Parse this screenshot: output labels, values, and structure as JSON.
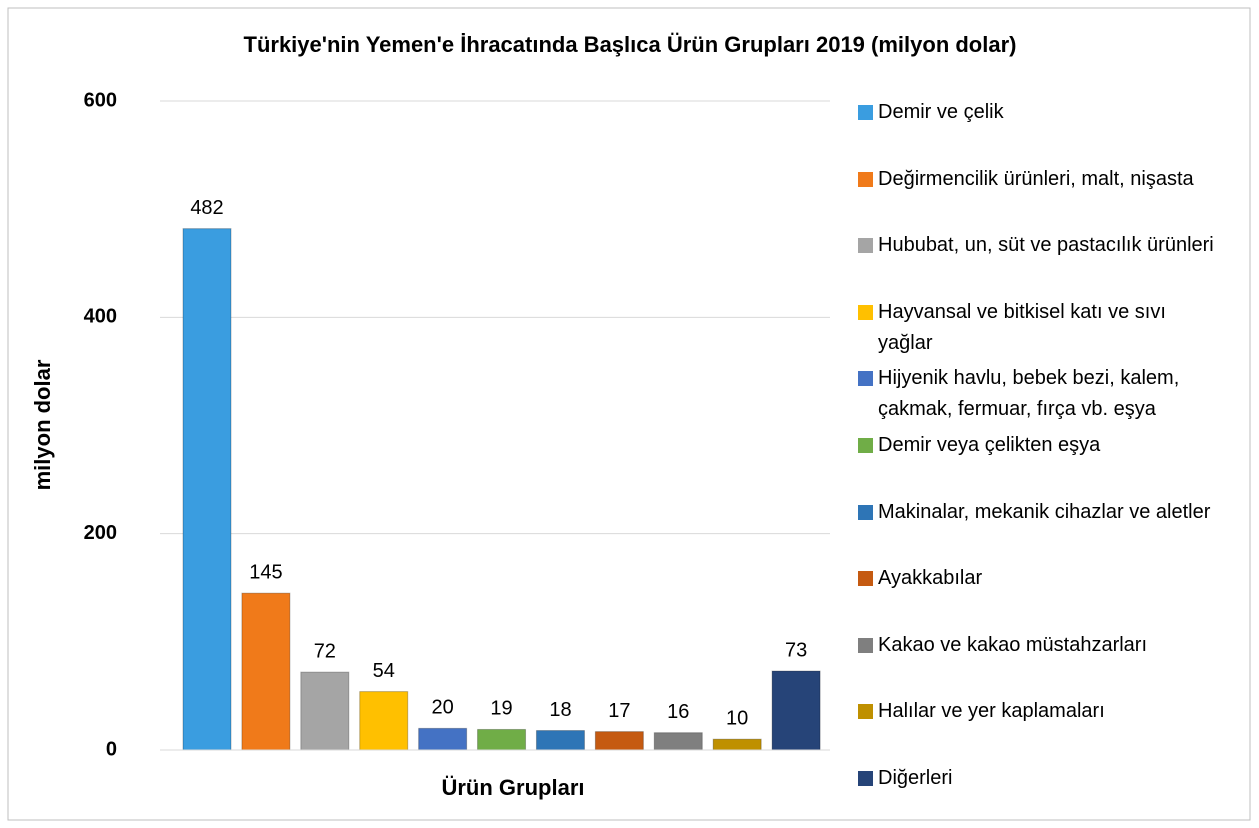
{
  "chart_data": {
    "type": "bar",
    "title": "Türkiye'nin Yemen'e  İhracatında Başlıca Ürün Grupları 2019 (milyon dolar)",
    "x_label": "Ürün Grupları",
    "y_label": "milyon dolar",
    "ylim": [
      0,
      600
    ],
    "yticks": [
      0,
      200,
      400,
      600
    ],
    "grid": true,
    "legend": "right",
    "series": [
      {
        "name": "Demir ve çelik",
        "color": "#3a9de0",
        "values": [
          482
        ]
      },
      {
        "name": "Değirmencilik ürünleri, malt, nişasta",
        "color": "#f07a1a",
        "values": [
          145
        ]
      },
      {
        "name": "Hububat, un, süt ve pastacılık ürünleri",
        "color": "#a5a5a5",
        "values": [
          72
        ]
      },
      {
        "name": "Hayvansal ve bitkisel katı ve sıvı yağlar",
        "color": "#ffc000",
        "values": [
          54
        ]
      },
      {
        "name": "Hijyenik havlu, bebek bezi, kalem, çakmak, fermuar, fırça vb. eşya",
        "color": "#4472c4",
        "values": [
          20
        ]
      },
      {
        "name": "Demir veya çelikten eşya",
        "color": "#70ad47",
        "values": [
          19
        ]
      },
      {
        "name": "Makinalar, mekanik cihazlar ve aletler",
        "color": "#2e75b6",
        "values": [
          18
        ]
      },
      {
        "name": "Ayakkabılar",
        "color": "#c55a11",
        "values": [
          17
        ]
      },
      {
        "name": "Kakao ve kakao müstahzarları",
        "color": "#7f7f7f",
        "values": [
          16
        ]
      },
      {
        "name": "Halılar ve yer kaplamaları",
        "color": "#bf9000",
        "values": [
          10
        ]
      },
      {
        "name": "Diğerleri",
        "color": "#264478",
        "values": [
          73
        ]
      }
    ]
  }
}
